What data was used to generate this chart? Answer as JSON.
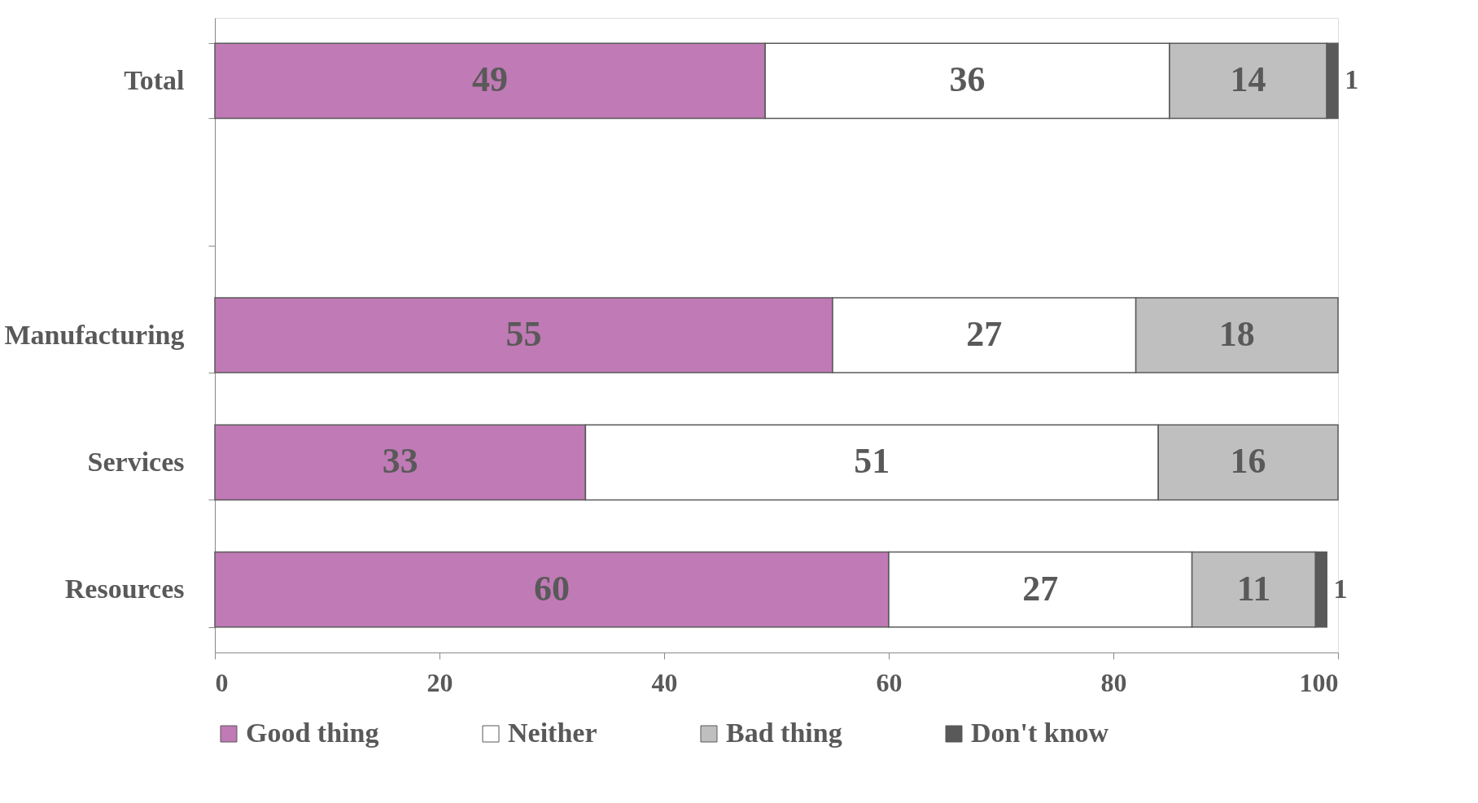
{
  "chart_data": {
    "type": "bar",
    "orientation": "horizontal",
    "stacked": true,
    "categories": [
      "Total",
      null,
      "Manufacturing",
      "Services",
      "Resources"
    ],
    "series": [
      {
        "name": "Good thing",
        "color": "#c07ab5",
        "values": [
          49,
          null,
          55,
          33,
          60
        ]
      },
      {
        "name": "Neither",
        "color": "#ffffff",
        "values": [
          36,
          null,
          27,
          51,
          27
        ]
      },
      {
        "name": "Bad thing",
        "color": "#bfbfbf",
        "values": [
          14,
          null,
          18,
          16,
          11
        ]
      },
      {
        "name": "Don't know",
        "color": "#595959",
        "values": [
          1,
          null,
          null,
          null,
          1
        ]
      }
    ],
    "xlim": [
      0,
      100
    ],
    "xticks": [
      0,
      20,
      40,
      60,
      80,
      100
    ],
    "data_labels": true,
    "grid": false,
    "legend": "bottom"
  }
}
